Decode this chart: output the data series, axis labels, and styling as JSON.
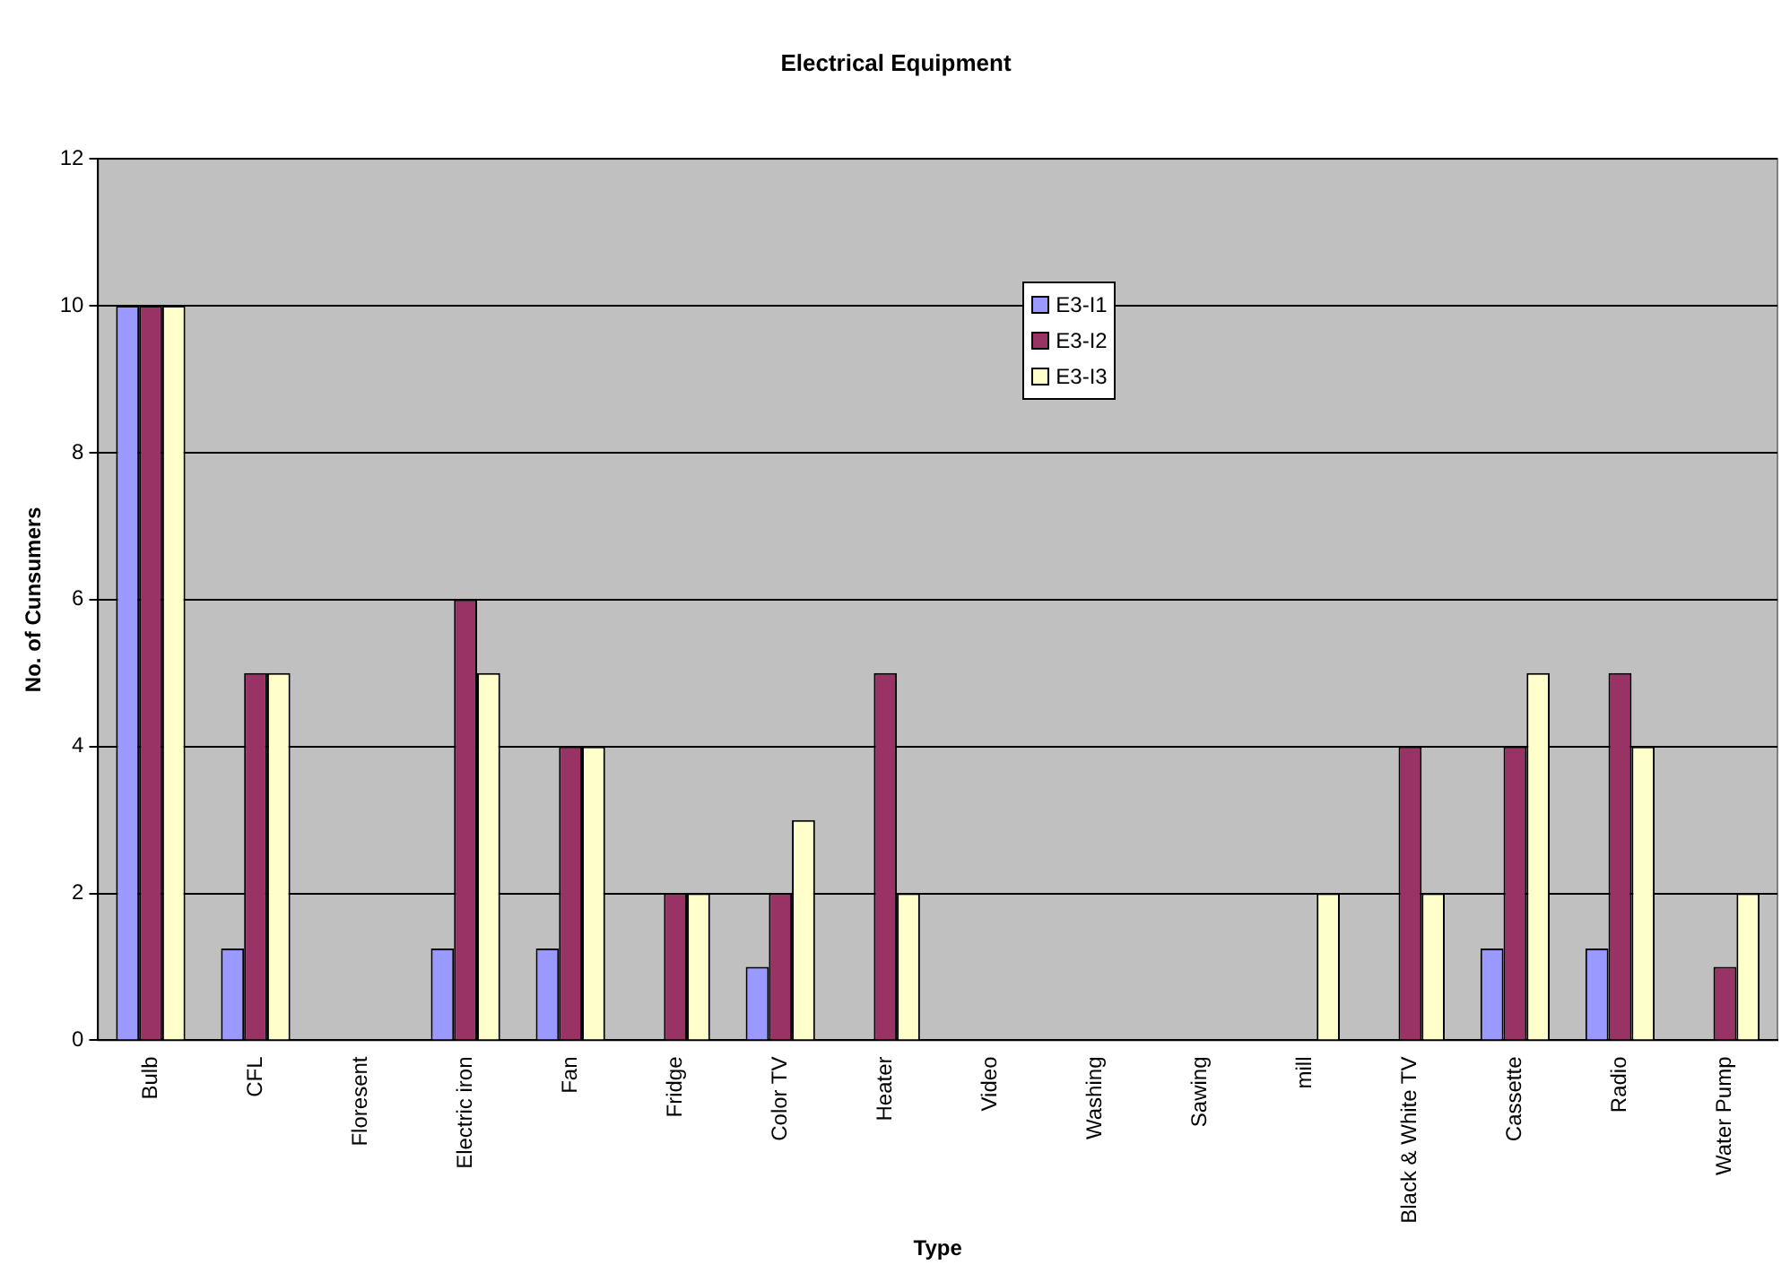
{
  "chart_data": {
    "type": "bar",
    "title": "Electrical Equipment",
    "xlabel": "Type",
    "ylabel": "No. of Cunsumers",
    "categories": [
      "Bulb",
      "CFL",
      "Floresent",
      "Electric iron",
      "Fan",
      "Fridge",
      "Color TV",
      "Heater",
      "Video",
      "Washing",
      "Sawing",
      "mill",
      "Black & White TV",
      "Cassette",
      "Radio",
      "Water Pump"
    ],
    "series": [
      {
        "name": "E3-I1",
        "color": "#9999ff",
        "values": [
          10,
          1.25,
          null,
          1.25,
          1.25,
          null,
          1,
          null,
          null,
          null,
          null,
          null,
          null,
          1.25,
          1.25,
          null
        ]
      },
      {
        "name": "E3-I2",
        "color": "#993366",
        "values": [
          10,
          5,
          null,
          6,
          4,
          2,
          2,
          5,
          null,
          null,
          null,
          null,
          4,
          4,
          5,
          1
        ]
      },
      {
        "name": "E3-I3",
        "color": "#ffffcc",
        "values": [
          10,
          5,
          null,
          5,
          4,
          2,
          3,
          2,
          null,
          null,
          null,
          2,
          2,
          5,
          4,
          2
        ]
      }
    ],
    "ylim": [
      0,
      12
    ],
    "yticks": [
      0,
      2,
      4,
      6,
      8,
      10,
      12
    ],
    "grid": "y",
    "legend": "top"
  }
}
